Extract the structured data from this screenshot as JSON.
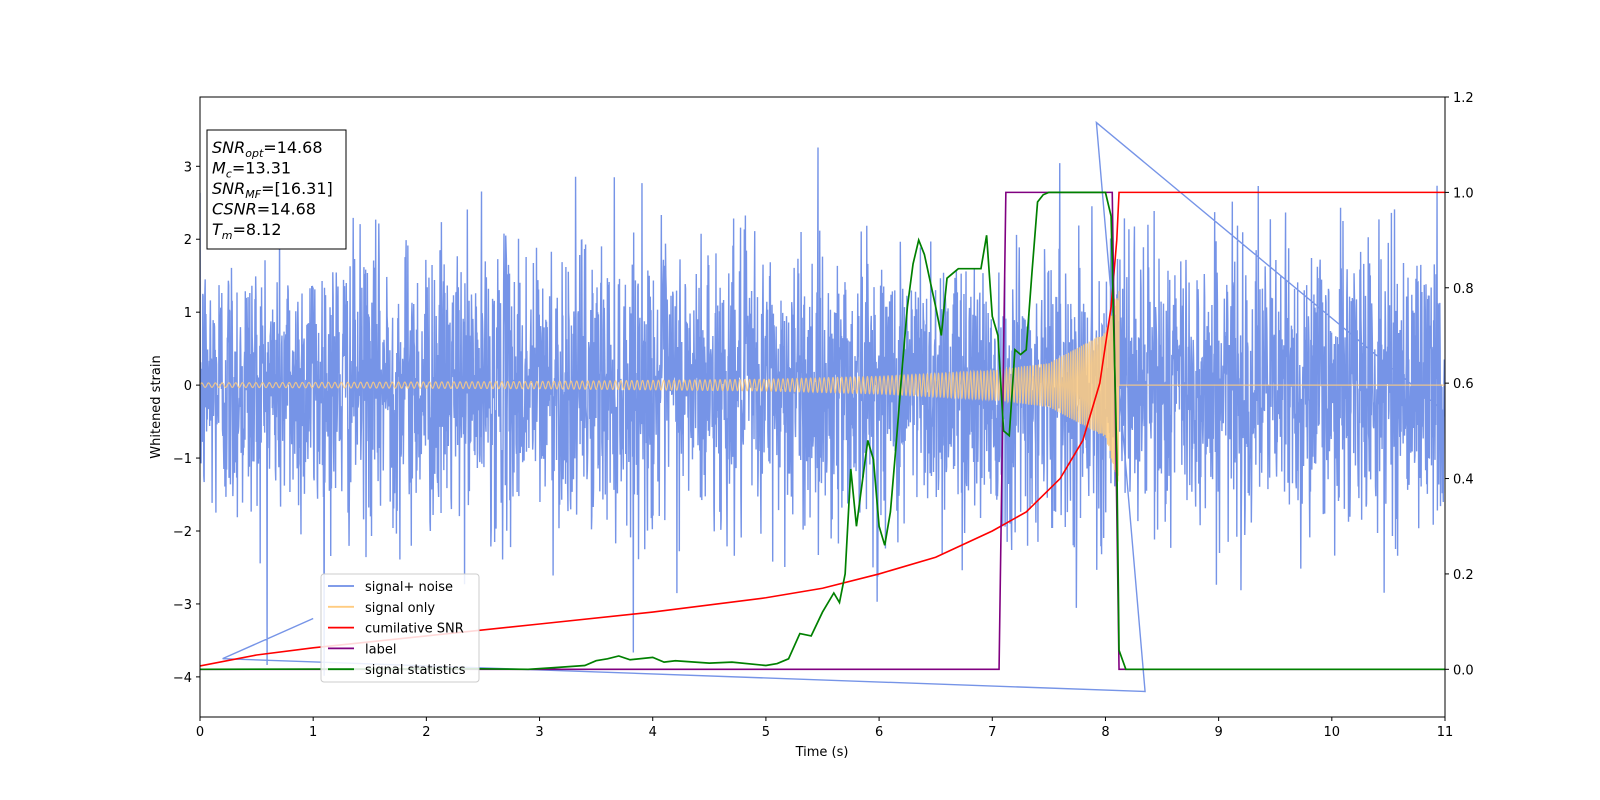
{
  "chart_data": {
    "type": "line",
    "xlabel": "Time (s)",
    "ylabel": "Whitened strain",
    "xlim": [
      0,
      11
    ],
    "ylim_left": [
      -4.55,
      3.95
    ],
    "ylim_right": [
      -0.1,
      1.2
    ],
    "x_ticks": [
      "0",
      "1",
      "2",
      "3",
      "4",
      "5",
      "6",
      "7",
      "8",
      "9",
      "10",
      "11"
    ],
    "y_left_ticks": [
      {
        "v": 3,
        "label": "3"
      },
      {
        "v": 2,
        "label": "2"
      },
      {
        "v": 1,
        "label": "1"
      },
      {
        "v": 0,
        "label": "0"
      },
      {
        "v": -1,
        "label": "−1"
      },
      {
        "v": -2,
        "label": "−2"
      },
      {
        "v": -3,
        "label": "−3"
      },
      {
        "v": -4,
        "label": "−4"
      }
    ],
    "y_right_ticks": [
      {
        "v": 1.2,
        "label": "1.2"
      },
      {
        "v": 1.0,
        "label": "1.0"
      },
      {
        "v": 0.8,
        "label": "0.8"
      },
      {
        "v": 0.6,
        "label": "0.6"
      },
      {
        "v": 0.4,
        "label": "0.4"
      },
      {
        "v": 0.2,
        "label": "0.2"
      },
      {
        "v": 0.0,
        "label": "0.0"
      }
    ],
    "legend": {
      "placement": "lower-left",
      "entries": [
        {
          "label": "signal+ noise",
          "color": "#6f8ee6"
        },
        {
          "label": "signal only",
          "color": "#ffcc80"
        },
        {
          "label": "cumilative SNR",
          "color": "#ff0000"
        },
        {
          "label": "label",
          "color": "#800080"
        },
        {
          "label": "signal statistics",
          "color": "#008000"
        }
      ]
    },
    "stats_box": [
      {
        "base": "SNR",
        "sub": "opt",
        "value": "=14.68"
      },
      {
        "base": "M",
        "sub": "c",
        "value": "=13.31"
      },
      {
        "base": "SNR",
        "sub": "MF",
        "value": "=[16.31]"
      },
      {
        "base": "CSNR",
        "sub": "",
        "value": "=14.68"
      },
      {
        "base": "T",
        "sub": "m",
        "value": "=8.12"
      }
    ],
    "series": [
      {
        "name": "signal+ noise",
        "axis": "left",
        "color": "#6f8ee6",
        "description": "dense noise, roughly N(0,1)",
        "x_range": [
          0,
          11
        ],
        "notable_extremes": [
          {
            "x": 7.92,
            "y": 3.6
          },
          {
            "x": 8.35,
            "y": -4.2
          },
          {
            "x": 0.2,
            "y": -3.75
          },
          {
            "x": 1.0,
            "y": -3.2
          }
        ]
      },
      {
        "name": "signal only",
        "axis": "left",
        "color": "#ffcc80",
        "description": "chirp with growing amplitude, ending at merger",
        "envelope": {
          "x": [
            0,
            3,
            5,
            6,
            7,
            7.5,
            8,
            8.12
          ],
          "amplitude": [
            0.03,
            0.05,
            0.08,
            0.12,
            0.2,
            0.3,
            0.72,
            1.4
          ]
        },
        "after_merger_value": 0
      },
      {
        "name": "cumilative SNR",
        "axis": "right",
        "color": "#ff0000",
        "x": [
          0,
          0.5,
          1,
          2,
          3,
          4,
          5,
          5.5,
          6,
          6.5,
          7,
          7.3,
          7.6,
          7.8,
          7.95,
          8.05,
          8.1,
          8.12,
          11
        ],
        "y": [
          0.007,
          0.03,
          0.045,
          0.07,
          0.095,
          0.12,
          0.15,
          0.17,
          0.2,
          0.235,
          0.29,
          0.33,
          0.4,
          0.48,
          0.6,
          0.76,
          0.9,
          1.0,
          1.0
        ]
      },
      {
        "name": "label",
        "axis": "right",
        "color": "#800080",
        "x": [
          0,
          7.06,
          7.12,
          8.06,
          8.12,
          11
        ],
        "y": [
          0,
          0,
          1,
          1,
          0,
          0
        ]
      },
      {
        "name": "signal statistics",
        "axis": "right",
        "color": "#008000",
        "x": [
          0,
          2.0,
          2.5,
          2.9,
          3.1,
          3.4,
          3.5,
          3.6,
          3.7,
          3.8,
          4.0,
          4.1,
          4.2,
          4.5,
          4.7,
          5.0,
          5.1,
          5.2,
          5.3,
          5.4,
          5.5,
          5.6,
          5.65,
          5.7,
          5.75,
          5.8,
          5.9,
          5.95,
          6.0,
          6.05,
          6.1,
          6.15,
          6.2,
          6.25,
          6.3,
          6.35,
          6.4,
          6.5,
          6.55,
          6.6,
          6.65,
          6.7,
          6.75,
          6.8,
          6.9,
          6.95,
          7.0,
          7.05,
          7.1,
          7.15,
          7.2,
          7.25,
          7.3,
          7.35,
          7.4,
          7.45,
          7.5,
          7.6,
          7.8,
          8.0,
          8.05,
          8.1,
          8.12,
          8.18,
          8.25,
          11
        ],
        "y": [
          0,
          0.001,
          0.001,
          0.0,
          0.003,
          0.008,
          0.018,
          0.022,
          0.028,
          0.02,
          0.025,
          0.015,
          0.018,
          0.013,
          0.015,
          0.008,
          0.012,
          0.022,
          0.075,
          0.07,
          0.12,
          0.16,
          0.14,
          0.2,
          0.42,
          0.3,
          0.48,
          0.44,
          0.3,
          0.26,
          0.33,
          0.47,
          0.62,
          0.76,
          0.85,
          0.9,
          0.87,
          0.76,
          0.7,
          0.82,
          0.83,
          0.84,
          0.84,
          0.84,
          0.84,
          0.91,
          0.74,
          0.7,
          0.5,
          0.49,
          0.67,
          0.66,
          0.67,
          0.83,
          0.98,
          0.995,
          1.0,
          1.0,
          1.0,
          1.0,
          0.95,
          0.45,
          0.04,
          0.0,
          0.0,
          0.0
        ]
      }
    ]
  }
}
